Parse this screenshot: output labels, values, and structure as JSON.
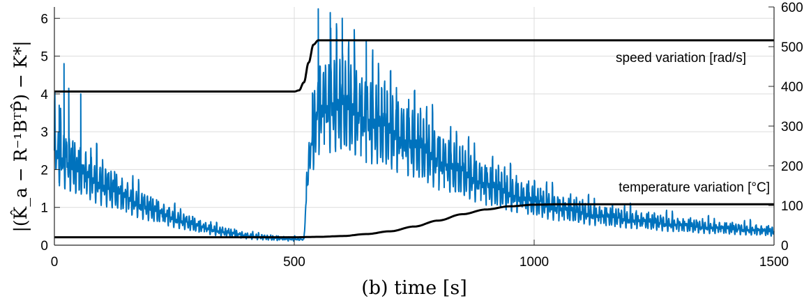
{
  "chart_data": {
    "type": "line",
    "xlabel": "(b) time [s]",
    "ylabel": "|(K̂_a − R⁻¹BᵀP̂) − K*|",
    "x_axis": {
      "lim": [
        0,
        1500
      ],
      "ticks": [
        0,
        500,
        1000,
        1500
      ],
      "tick_labels": [
        "0",
        "500",
        "1000",
        "1500"
      ]
    },
    "y_axis_left": {
      "lim": [
        0,
        6.3
      ],
      "ticks": [
        0,
        1,
        2,
        3,
        4,
        5,
        6
      ],
      "tick_labels": [
        "0",
        "1",
        "2",
        "3",
        "4",
        "5",
        "6"
      ]
    },
    "y_axis_right": {
      "lim": [
        0,
        600
      ],
      "ticks": [
        0,
        100,
        200,
        300,
        400,
        500,
        600
      ],
      "tick_labels": [
        "0",
        "100",
        "200",
        "300",
        "400",
        "500",
        "600"
      ]
    },
    "grid": true,
    "colors": {
      "error": "#0072BD",
      "references": "#000000"
    },
    "annotations": [
      "speed variation [rad/s]",
      "temperature variation [°C]"
    ],
    "series": [
      {
        "axis": "left",
        "color": "#0072BD",
        "x": [
          0,
          25,
          50,
          100,
          150,
          200,
          250,
          300,
          350,
          400,
          450,
          500,
          520,
          530,
          550,
          575,
          600,
          650,
          700,
          750,
          800,
          850,
          900,
          950,
          1000,
          1050,
          1100,
          1150,
          1200,
          1250,
          1300,
          1350,
          1400,
          1450,
          1500
        ],
        "y": [
          2.5,
          2.2,
          1.95,
          1.6,
          1.25,
          0.95,
          0.7,
          0.5,
          0.35,
          0.25,
          0.19,
          0.16,
          0.15,
          2.2,
          3.6,
          3.75,
          3.65,
          3.35,
          3.0,
          2.65,
          2.25,
          1.9,
          1.6,
          1.35,
          1.15,
          0.98,
          0.85,
          0.75,
          0.67,
          0.6,
          0.53,
          0.48,
          0.44,
          0.4,
          0.36
        ],
        "peaks_x": [
          10,
          20,
          30,
          55,
          550,
          575,
          600,
          625,
          650
        ],
        "peaks_y": [
          3.7,
          4.8,
          4.15,
          4.0,
          6.25,
          6.15,
          6.0,
          5.7,
          5.4
        ]
      },
      {
        "axis": "right",
        "label": "speed variation [rad/s]",
        "color": "#000000",
        "x": [
          0,
          500,
          510,
          520,
          530,
          540,
          550,
          1500
        ],
        "y": [
          387,
          387,
          390,
          410,
          460,
          505,
          516,
          516
        ]
      },
      {
        "axis": "right",
        "label": "temperature variation [°C]",
        "color": "#000000",
        "x": [
          0,
          500,
          550,
          600,
          650,
          700,
          750,
          800,
          850,
          900,
          950,
          1000,
          1050,
          1100,
          1500
        ],
        "y": [
          20,
          20,
          21,
          23,
          28,
          35,
          47,
          62,
          78,
          90,
          98,
          102,
          103,
          103,
          103
        ]
      }
    ]
  }
}
